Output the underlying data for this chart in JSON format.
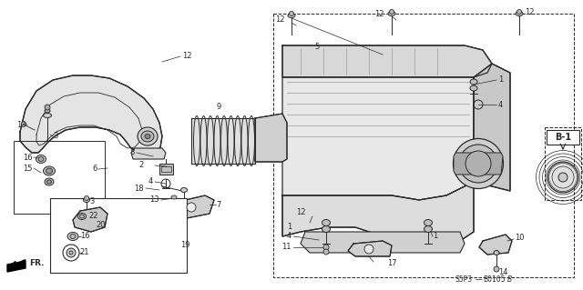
{
  "background_color": "#ffffff",
  "line_color": "#2a2a2a",
  "figsize": [
    6.4,
    3.19
  ],
  "dpi": 100,
  "diagram_code": "S5P3—B0105",
  "diagram_suffix": "B"
}
